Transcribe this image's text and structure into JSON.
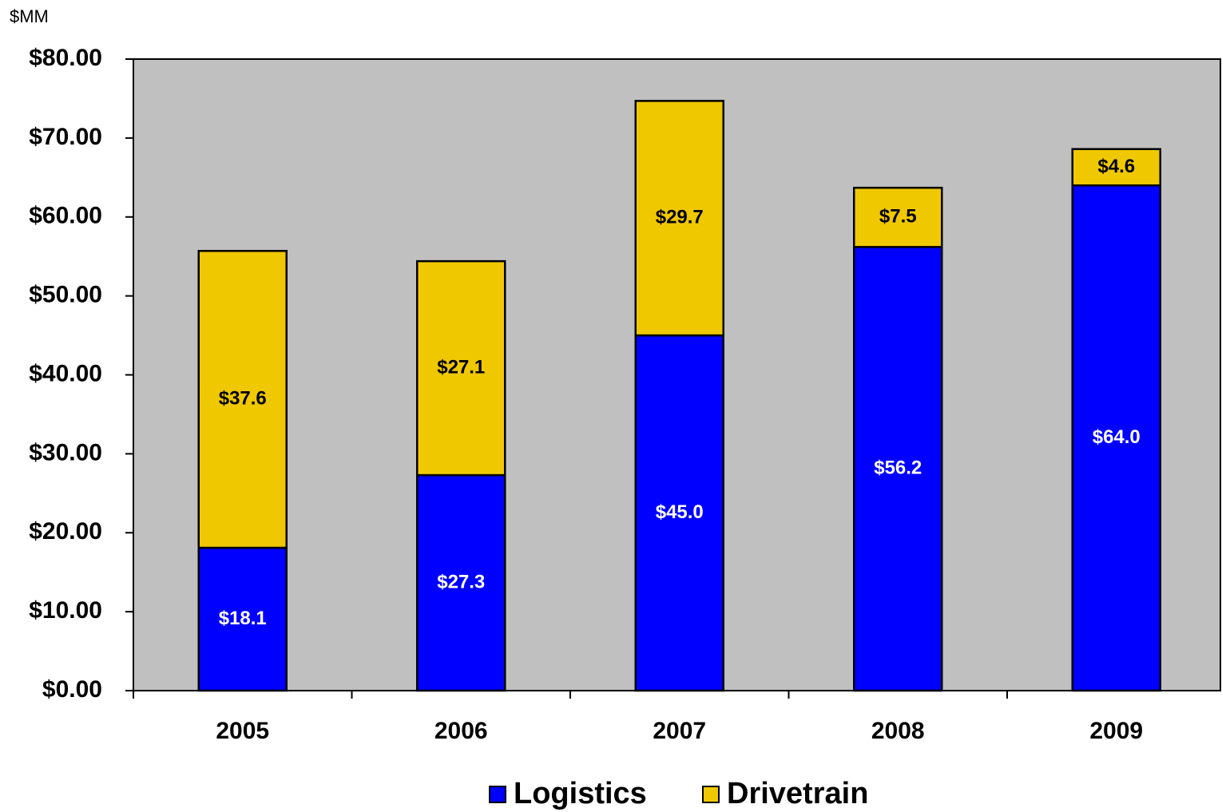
{
  "chart_data": {
    "type": "stacked_bar",
    "unit_label": "$MM",
    "categories": [
      "2005",
      "2006",
      "2007",
      "2008",
      "2009"
    ],
    "series": [
      {
        "name": "Logistics",
        "color": "#0000ff",
        "values": [
          18.1,
          27.3,
          45.0,
          56.2,
          64.0
        ],
        "value_labels": [
          "$18.1",
          "$27.3",
          "$45.0",
          "$56.2",
          "$64.0"
        ]
      },
      {
        "name": "Drivetrain",
        "color": "#f0c800",
        "values": [
          37.6,
          27.1,
          29.7,
          7.5,
          4.6
        ],
        "value_labels": [
          "$37.6",
          "$27.1",
          "$29.7",
          "$7.5",
          "$4.6"
        ]
      }
    ],
    "ylim": [
      0,
      80
    ],
    "yticks": [
      {
        "value": 0,
        "label": "$0.00"
      },
      {
        "value": 10,
        "label": "$10.00"
      },
      {
        "value": 20,
        "label": "$20.00"
      },
      {
        "value": 30,
        "label": "$30.00"
      },
      {
        "value": 40,
        "label": "$40.00"
      },
      {
        "value": 50,
        "label": "$50.00"
      },
      {
        "value": 60,
        "label": "$60.00"
      },
      {
        "value": 70,
        "label": "$70.00"
      },
      {
        "value": 80,
        "label": "$80.00"
      }
    ],
    "plot_background": "#c0c0c0",
    "legend_position": "bottom"
  }
}
